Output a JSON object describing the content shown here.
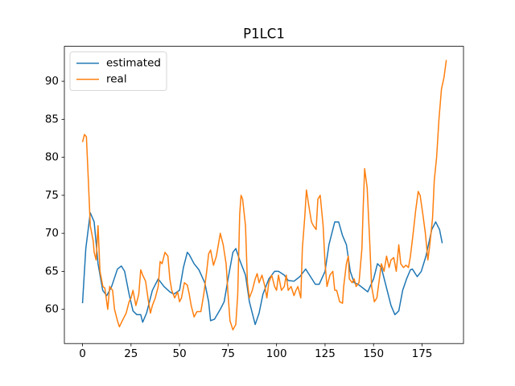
{
  "chart_data": {
    "type": "line",
    "title": "P1LC1",
    "xlim": [
      -9.35,
      196.35
    ],
    "ylim": [
      55.5,
      94.6
    ],
    "xticks": [
      0,
      25,
      50,
      75,
      100,
      125,
      150,
      175
    ],
    "yticks": [
      60,
      65,
      70,
      75,
      80,
      85,
      90
    ],
    "grid": false,
    "legend": "upper left",
    "series": [
      {
        "name": "estimated",
        "color": "#1f77b4",
        "x": [
          0,
          1.7,
          4,
          6,
          8,
          10.4,
          12.5,
          15,
          18,
          20,
          21.7,
          24,
          26,
          28,
          30,
          31,
          33,
          36,
          39,
          42,
          45,
          47,
          50,
          52,
          54,
          55,
          57.5,
          60,
          63,
          65,
          66,
          68,
          71,
          73,
          75,
          77.5,
          79,
          81,
          84,
          86,
          89,
          91,
          93,
          96,
          99,
          101,
          104,
          106,
          109,
          112,
          115,
          117,
          120,
          122,
          125,
          127,
          130,
          132,
          134,
          136,
          138,
          140,
          142,
          145,
          147,
          150,
          152,
          154,
          156,
          159,
          161,
          163,
          165,
          167,
          169,
          170,
          172.5,
          174.6,
          177,
          180,
          182,
          184,
          185.4
        ],
        "values": [
          60.8,
          68,
          72.7,
          71.5,
          66,
          62.5,
          61.8,
          63,
          65.3,
          65.7,
          65,
          62,
          59.8,
          59.3,
          59.3,
          58.3,
          59.5,
          62.5,
          64,
          63,
          62.3,
          62,
          62.5,
          65.5,
          67.5,
          67.2,
          66,
          65.2,
          63.5,
          61,
          58.5,
          58.7,
          60,
          61,
          64,
          67.5,
          68,
          66.5,
          64.5,
          61,
          58,
          59.5,
          62,
          64,
          65,
          65,
          64.5,
          63.8,
          63.7,
          64.3,
          65.3,
          64.5,
          63.3,
          63.3,
          65,
          68.5,
          71.5,
          71.5,
          69.7,
          68.5,
          65,
          63.5,
          63.3,
          62.7,
          62.3,
          64,
          66,
          65.5,
          63.5,
          60.5,
          59.3,
          59.8,
          62.5,
          64,
          65.2,
          65.3,
          64.3,
          65,
          67,
          70.5,
          71.5,
          70.5,
          68.7
        ]
      },
      {
        "name": "real",
        "color": "#ff7f0e",
        "x": [
          0,
          1,
          2,
          3,
          4,
          5.5,
          6,
          7,
          8,
          9,
          10.5,
          11.5,
          13,
          14,
          15.5,
          16.5,
          18,
          19,
          20.5,
          22.5,
          24,
          25,
          26,
          27.5,
          29,
          30,
          31,
          32.5,
          34,
          35,
          36,
          37.5,
          39,
          40,
          41,
          42.5,
          44,
          45,
          46,
          47.5,
          49,
          50,
          51,
          52.5,
          54,
          55,
          56,
          57.5,
          59,
          61,
          62.5,
          64,
          65,
          66,
          67.5,
          69,
          70,
          71,
          72.5,
          74,
          75,
          76,
          77.5,
          79,
          80,
          81,
          81.7,
          82.5,
          84,
          85,
          86,
          87.5,
          89,
          90,
          91,
          92.5,
          94,
          95,
          96,
          97.5,
          99,
          100,
          101,
          102.5,
          104,
          105,
          106,
          107.5,
          109,
          110,
          111,
          112.5,
          113.3,
          114.5,
          115.4,
          116.7,
          118,
          119,
          120.4,
          121.3,
          122.5,
          124,
          125,
          126,
          127.5,
          129,
          130,
          131,
          132.5,
          134,
          134.6,
          136,
          137,
          137.5,
          139,
          140,
          141,
          142.5,
          144,
          144.6,
          145.4,
          146.7,
          148,
          149,
          150.4,
          151.7,
          153,
          154,
          155.4,
          156.7,
          158,
          159,
          160.4,
          161.7,
          163,
          164,
          165.4,
          166.7,
          168,
          169,
          170.4,
          171.7,
          173,
          174,
          175.4,
          176.7,
          178,
          179,
          180.4,
          181.3,
          182.5,
          183.7,
          185,
          186.3,
          187.5
        ],
        "values": [
          82,
          83,
          82.7,
          77,
          71,
          69,
          67.5,
          66.5,
          71,
          65,
          63,
          62.8,
          60,
          63,
          62.5,
          60,
          58.5,
          57.7,
          58.5,
          59.5,
          61,
          61.5,
          62.5,
          60.5,
          62,
          65.2,
          64.5,
          63.7,
          61,
          59.5,
          60.5,
          61.5,
          63,
          66.3,
          66,
          67.5,
          67,
          64,
          62.5,
          61.5,
          62.3,
          61,
          61.5,
          63.5,
          63.2,
          62,
          60.5,
          59,
          59.7,
          59.7,
          62,
          65,
          67.3,
          67.8,
          65.8,
          67,
          68.5,
          70,
          68.5,
          66,
          62,
          58.5,
          57.3,
          58,
          62,
          72.5,
          75,
          74.5,
          71,
          63.5,
          61.5,
          62.5,
          64,
          64.7,
          63.5,
          64.5,
          63,
          61.5,
          63.5,
          64.5,
          63,
          62.5,
          64.5,
          62.5,
          63,
          64.5,
          62.5,
          63,
          61.8,
          62.5,
          63,
          61.5,
          68,
          72,
          75.7,
          73.5,
          71.5,
          71,
          70.5,
          74.5,
          75,
          71,
          66,
          63,
          64.5,
          65,
          62.5,
          62.5,
          61,
          60.8,
          63,
          66,
          67,
          64,
          63.5,
          64,
          63,
          63.5,
          68,
          73,
          78.5,
          76,
          69,
          63,
          61,
          61.5,
          64,
          66,
          65,
          67,
          65.5,
          66.5,
          66.8,
          65,
          68.5,
          66,
          65.5,
          65.8,
          65.5,
          67,
          70,
          73,
          75.5,
          75,
          72.5,
          70,
          66.5,
          68.5,
          72,
          77,
          80,
          85,
          89,
          90.5,
          92.8
        ]
      }
    ]
  }
}
